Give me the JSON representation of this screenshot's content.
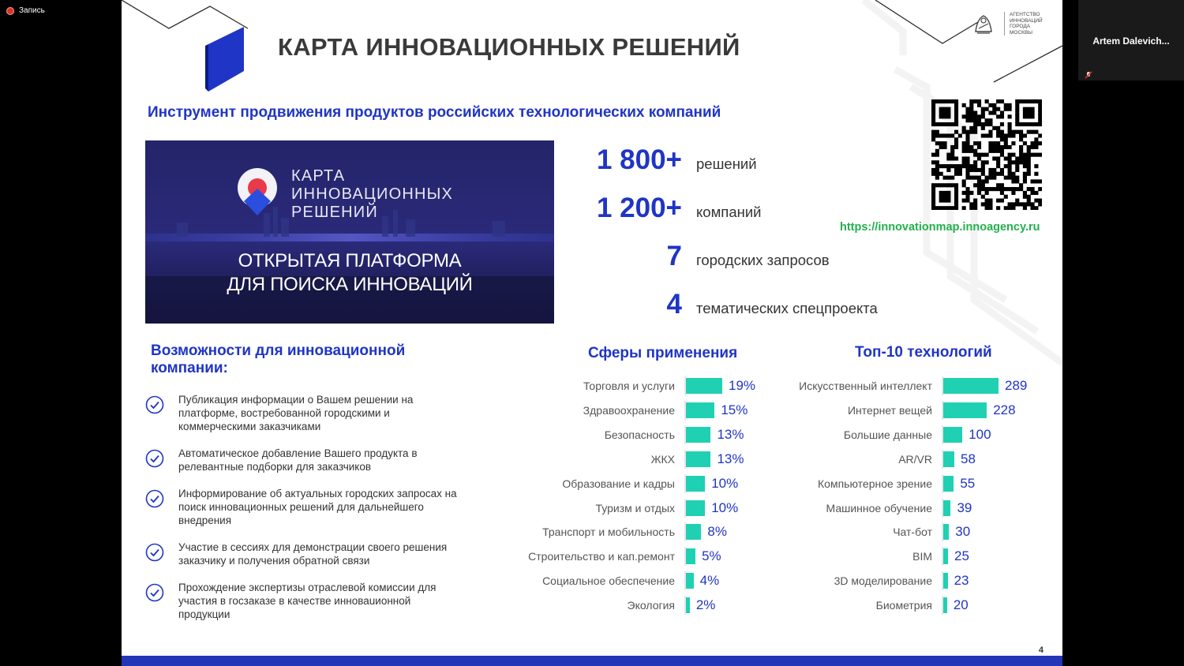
{
  "recording": {
    "label": "Запись"
  },
  "participant": {
    "name": "Artem  Dalevich..."
  },
  "slide": {
    "title": "КАРТА ИННОВАЦИОННЫХ РЕШЕНИЙ",
    "agency_lines": [
      "АГЕНТСТВО",
      "ИННОВАЦИЙ",
      "ГОРОДА",
      "МОСКВЫ"
    ],
    "subtitle": "Инструмент продвижения продуктов российских технологических компаний",
    "banner": {
      "name_lines": [
        "КАРТА",
        "ИННОВАЦИОННЫХ",
        "РЕШЕНИЙ"
      ],
      "tagline_lines": [
        "ОТКРЫТАЯ ПЛАТФОРМА",
        "ДЛЯ ПОИСКА ИННОВАЦИЙ"
      ]
    },
    "stats": [
      {
        "value": "1 800+",
        "label": "решений"
      },
      {
        "value": "1 200+",
        "label": "компаний"
      },
      {
        "value": "7",
        "label": "городских запросов"
      },
      {
        "value": "4",
        "label": "тематических спецпроекта"
      }
    ],
    "url": "https://innovationmap.innoagency.ru",
    "opportunities": {
      "title_lines": [
        "Возможности для инновационной",
        "компании:"
      ],
      "items": [
        "Публикация информации о Вашем решении на платформе, востребованной городскими и коммерческими заказчиками",
        "Автоматическое добавление Вашего продукта в релевантные подборки для заказчиков",
        "Информирование об актуальных городских запросах на поиск инновационных решений для дальнейшего внедрения",
        "Участие в сессиях для демонстрации своего решения заказчику и получения обратной связи",
        "Прохождение экспертизы отраслевой комиссии для участия в госзаказе в качестве инноваuионной продукции"
      ]
    },
    "page_number": "4"
  },
  "colors": {
    "accent": "#1f35c5",
    "bar": "#1fd1b2",
    "url": "#22b04c",
    "banner": "#1e1d5e"
  },
  "chart_data": [
    {
      "type": "bar",
      "title": "Сферы применения",
      "categories": [
        "Торговля и услуги",
        "Здравоохранение",
        "Безопасность",
        "ЖКХ",
        "Образование и кадры",
        "Туризм и отдых",
        "Транспорт и мобильность",
        "Строительство и кап.ремонт",
        "Социальное обеспечение",
        "Экология"
      ],
      "values": [
        19,
        15,
        13,
        13,
        10,
        10,
        8,
        5,
        4,
        2
      ],
      "value_labels": [
        "19%",
        "15%",
        "13%",
        "13%",
        "10%",
        "10%",
        "8%",
        "5%",
        "4%",
        "2%"
      ],
      "orientation": "horizontal"
    },
    {
      "type": "bar",
      "title": "Топ-10 технологий",
      "categories": [
        "Искусственный интеллект",
        "Интернет вещей",
        "Большие данные",
        "AR/VR",
        "Компьютерное зрение",
        "Машинное обучение",
        "Чат-бот",
        "BIM",
        "3D моделирование",
        "Биометрия"
      ],
      "values": [
        289,
        228,
        100,
        58,
        55,
        39,
        30,
        25,
        23,
        20
      ],
      "value_labels": [
        "289",
        "228",
        "100",
        "58",
        "55",
        "39",
        "30",
        "25",
        "23",
        "20"
      ],
      "orientation": "horizontal"
    }
  ]
}
